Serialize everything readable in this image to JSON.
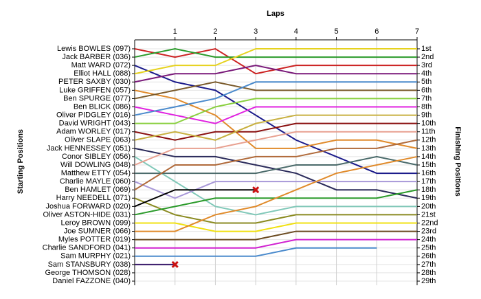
{
  "chart_data": {
    "type": "lap",
    "title": "Laps",
    "ylabel": "Starting Positions",
    "y2label": "Finishing Positions",
    "x": [
      0,
      1,
      2,
      3,
      4,
      5,
      6,
      7
    ],
    "xlim": [
      0,
      7
    ],
    "xticks": [
      1,
      2,
      3,
      4,
      5,
      6,
      7
    ],
    "ylim": [
      1,
      29
    ],
    "yticks": [
      {
        "value": 1,
        "label": "1st"
      },
      {
        "value": 2,
        "label": "2nd"
      },
      {
        "value": 3,
        "label": "3rd"
      },
      {
        "value": 4,
        "label": "4th"
      },
      {
        "value": 5,
        "label": "5th"
      },
      {
        "value": 6,
        "label": "6th"
      },
      {
        "value": 7,
        "label": "7th"
      },
      {
        "value": 8,
        "label": "8th"
      },
      {
        "value": 9,
        "label": "9th"
      },
      {
        "value": 10,
        "label": "10th"
      },
      {
        "value": 11,
        "label": "11th"
      },
      {
        "value": 12,
        "label": "12th"
      },
      {
        "value": 13,
        "label": "13th"
      },
      {
        "value": 14,
        "label": "14th"
      },
      {
        "value": 15,
        "label": "15th"
      },
      {
        "value": 16,
        "label": "16th"
      },
      {
        "value": 17,
        "label": "17th"
      },
      {
        "value": 18,
        "label": "18th"
      },
      {
        "value": 19,
        "label": "19th"
      },
      {
        "value": 20,
        "label": "20th"
      },
      {
        "value": 21,
        "label": "21st"
      },
      {
        "value": 22,
        "label": "22nd"
      },
      {
        "value": 23,
        "label": "23rd"
      },
      {
        "value": 24,
        "label": "24th"
      },
      {
        "value": 25,
        "label": "25th"
      },
      {
        "value": 26,
        "label": "26th"
      },
      {
        "value": 27,
        "label": "27th"
      },
      {
        "value": 28,
        "label": "28th"
      },
      {
        "value": 29,
        "label": "29th"
      }
    ],
    "grid": true,
    "series": [
      {
        "name": "Lewis BOWLES (097)",
        "color": "#cc2222",
        "values": [
          1,
          2,
          1,
          4,
          3,
          3,
          3,
          3
        ]
      },
      {
        "name": "Jack BARBER (036)",
        "color": "#2a9a2a",
        "values": [
          2,
          1,
          2,
          2,
          2,
          2,
          2,
          2
        ]
      },
      {
        "name": "Matt WARD (072)",
        "color": "#1a1a8a",
        "values": [
          3,
          5,
          6,
          9,
          12,
          14,
          16,
          16
        ]
      },
      {
        "name": "Elliot HALL (088)",
        "color": "#e6d21e",
        "values": [
          4,
          3,
          3,
          1,
          1,
          1,
          1,
          1
        ]
      },
      {
        "name": "PETER SAXBY (030)",
        "color": "#7a1a7a",
        "values": [
          5,
          4,
          4,
          3,
          4,
          4,
          4,
          4
        ]
      },
      {
        "name": "Luke GRIFFEN (057)",
        "color": "#e08a2a",
        "values": [
          6,
          7,
          9,
          13,
          13,
          12,
          12,
          13
        ]
      },
      {
        "name": "Ben SPURGE (077)",
        "color": "#7a5a2a",
        "values": [
          7,
          6,
          5,
          6,
          6,
          6,
          6,
          6
        ]
      },
      {
        "name": "Ben BLICK (086)",
        "color": "#e020e0",
        "values": [
          8,
          9,
          10,
          8,
          8,
          8,
          8,
          8
        ]
      },
      {
        "name": "Oliver PIDGLEY (016)",
        "color": "#4a8acc",
        "values": [
          9,
          8,
          7,
          5,
          5,
          5,
          5,
          5
        ]
      },
      {
        "name": "David WRIGHT (043)",
        "color": "#8ad040",
        "values": [
          10,
          10,
          8,
          7,
          7,
          7,
          7,
          7
        ]
      },
      {
        "name": "Adam WORLEY (017)",
        "color": "#8a1010",
        "values": [
          11,
          12,
          11,
          11,
          10,
          10,
          10,
          10
        ]
      },
      {
        "name": "Oliver SLAPE (063)",
        "color": "#c8b040",
        "values": [
          12,
          11,
          12,
          10,
          9,
          9,
          9,
          9
        ]
      },
      {
        "name": "Jack HENNESSEY (051)",
        "color": "#2a2a5a",
        "values": [
          13,
          14,
          14,
          15,
          16,
          18,
          18,
          19
        ]
      },
      {
        "name": "Conor SIBLEY (056)",
        "color": "#80c8b8",
        "values": [
          14,
          17,
          20,
          21,
          20,
          20,
          20,
          20
        ]
      },
      {
        "name": "Will DOWLING (048)",
        "color": "#e8a090",
        "values": [
          15,
          13,
          13,
          12,
          11,
          11,
          11,
          11
        ]
      },
      {
        "name": "Matthew ETTY (054)",
        "color": "#4a6a6a",
        "values": [
          16,
          16,
          16,
          16,
          15,
          15,
          14,
          15
        ]
      },
      {
        "name": "Charlie MAYLE (060)",
        "color": "#a898d8",
        "values": [
          17,
          19,
          17,
          17,
          17,
          17,
          17,
          17
        ]
      },
      {
        "name": "Ben HAMLET (069)",
        "color": "#b06a3a",
        "values": [
          18,
          15,
          15,
          14,
          14,
          13,
          13,
          12
        ]
      },
      {
        "name": "Harry NEEDELL (071)",
        "color": "#8a8a20",
        "values": [
          19,
          21,
          22,
          22,
          21,
          21,
          21,
          21
        ]
      },
      {
        "name": "Joshua FORWARD (020)",
        "color": "#000000",
        "values": [
          20,
          18,
          18,
          18,
          null,
          null,
          null,
          null
        ],
        "retired": true
      },
      {
        "name": "Oliver ASTON-HIDE (031)",
        "color": "#2a9a2a",
        "values": [
          21,
          20,
          19,
          19,
          19,
          19,
          19,
          18
        ]
      },
      {
        "name": "Leroy BROWN (099)",
        "color": "#f0e010",
        "values": [
          22,
          22,
          23,
          23,
          22,
          22,
          22,
          22
        ]
      },
      {
        "name": "Joe SUMNER (066)",
        "color": "#e08a2a",
        "values": [
          23,
          23,
          21,
          20,
          18,
          16,
          15,
          14
        ]
      },
      {
        "name": "Myles POTTER (019)",
        "color": "#6a4a20",
        "values": [
          24,
          24,
          24,
          24,
          23,
          23,
          23,
          23
        ]
      },
      {
        "name": "Charlie SANDFORD (041)",
        "color": "#d020d0",
        "values": [
          25,
          25,
          25,
          25,
          24,
          24,
          24,
          24
        ]
      },
      {
        "name": "Sam MURPHY (021)",
        "color": "#4a8acc",
        "values": [
          26,
          26,
          26,
          26,
          25,
          25,
          25,
          null
        ]
      },
      {
        "name": "Sam STANSBURY (038)",
        "color": "#3a1a6a",
        "values": [
          27,
          27,
          null,
          null,
          null,
          null,
          null,
          null
        ],
        "retired": true
      },
      {
        "name": "George THOMSON (028)",
        "color": "#888888",
        "values": [
          28,
          null,
          null,
          null,
          null,
          null,
          null,
          null
        ]
      },
      {
        "name": "Daniel FAZZONE (040)",
        "color": "#888888",
        "values": [
          29,
          null,
          null,
          null,
          null,
          null,
          null,
          null
        ]
      }
    ]
  }
}
